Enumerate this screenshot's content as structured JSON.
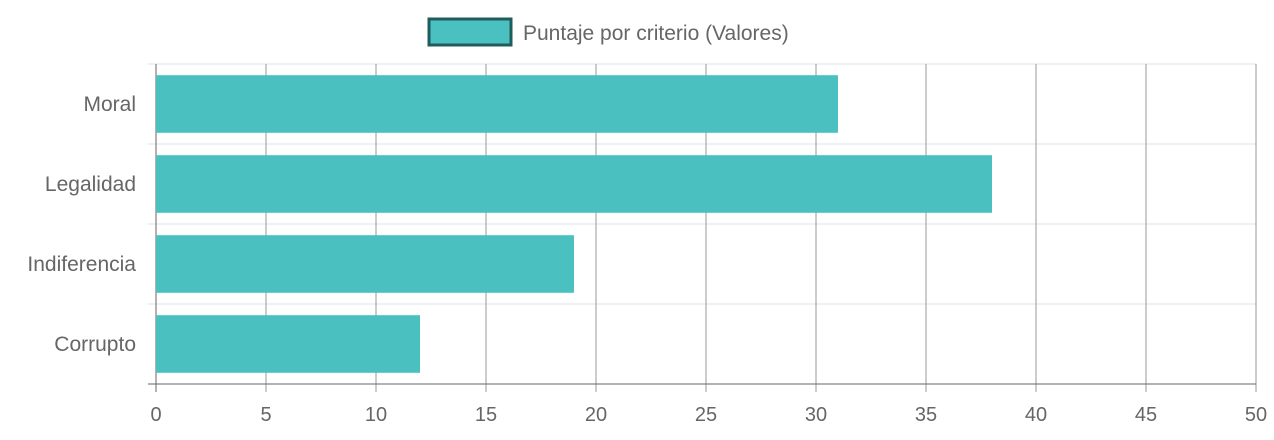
{
  "chart_data": {
    "type": "bar",
    "orientation": "horizontal",
    "categories": [
      "Moral",
      "Legalidad",
      "Indiferencia",
      "Corrupto"
    ],
    "series": [
      {
        "name": "Puntaje por criterio (Valores)",
        "values": [
          31,
          38,
          19,
          12
        ]
      }
    ],
    "xlim": [
      0,
      50
    ],
    "x_ticks": [
      0,
      5,
      10,
      15,
      20,
      25,
      30,
      35,
      40,
      45,
      50
    ],
    "grid": true,
    "legend": "top-center",
    "colors": {
      "bar_fill": "#4bc0c0",
      "legend_border": "#1f5c5c",
      "grid": "#e0e0e0",
      "vertical_grid": "#9a9a9a",
      "text": "#666666"
    }
  }
}
